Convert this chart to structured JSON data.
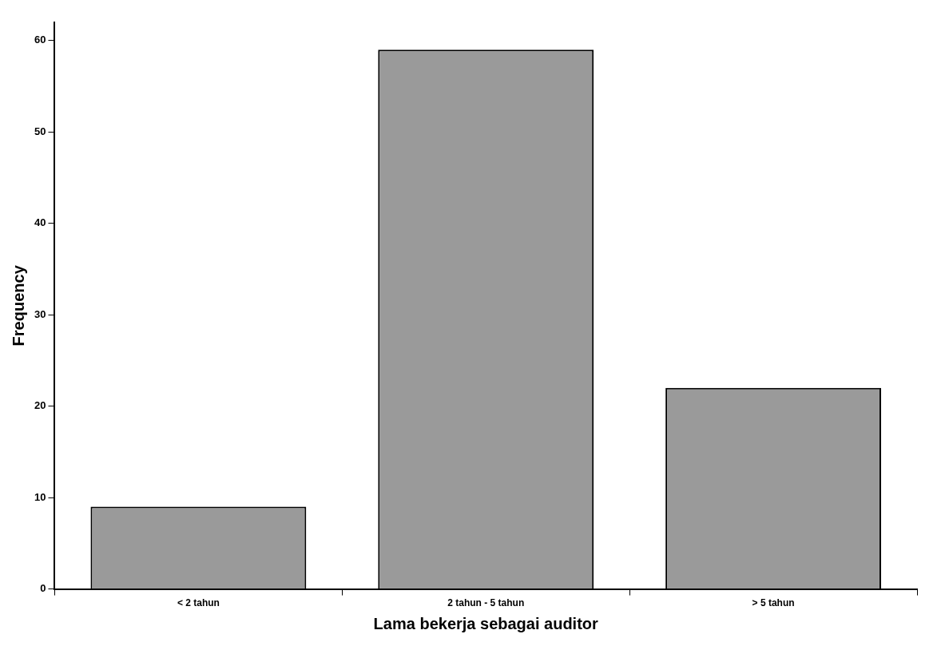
{
  "chart_data": {
    "type": "bar",
    "xlabel": "Lama bekerja sebagai auditor",
    "ylabel": "Frequency",
    "categories": [
      "< 2 tahun",
      "2 tahun - 5 tahun",
      "> 5 tahun"
    ],
    "values": [
      9,
      59,
      22
    ],
    "color": "#9a9a9a",
    "ylim": [
      0,
      62
    ],
    "yticks": [
      0,
      10,
      20,
      30,
      40,
      50,
      60
    ],
    "grid": false,
    "legend": false
  }
}
